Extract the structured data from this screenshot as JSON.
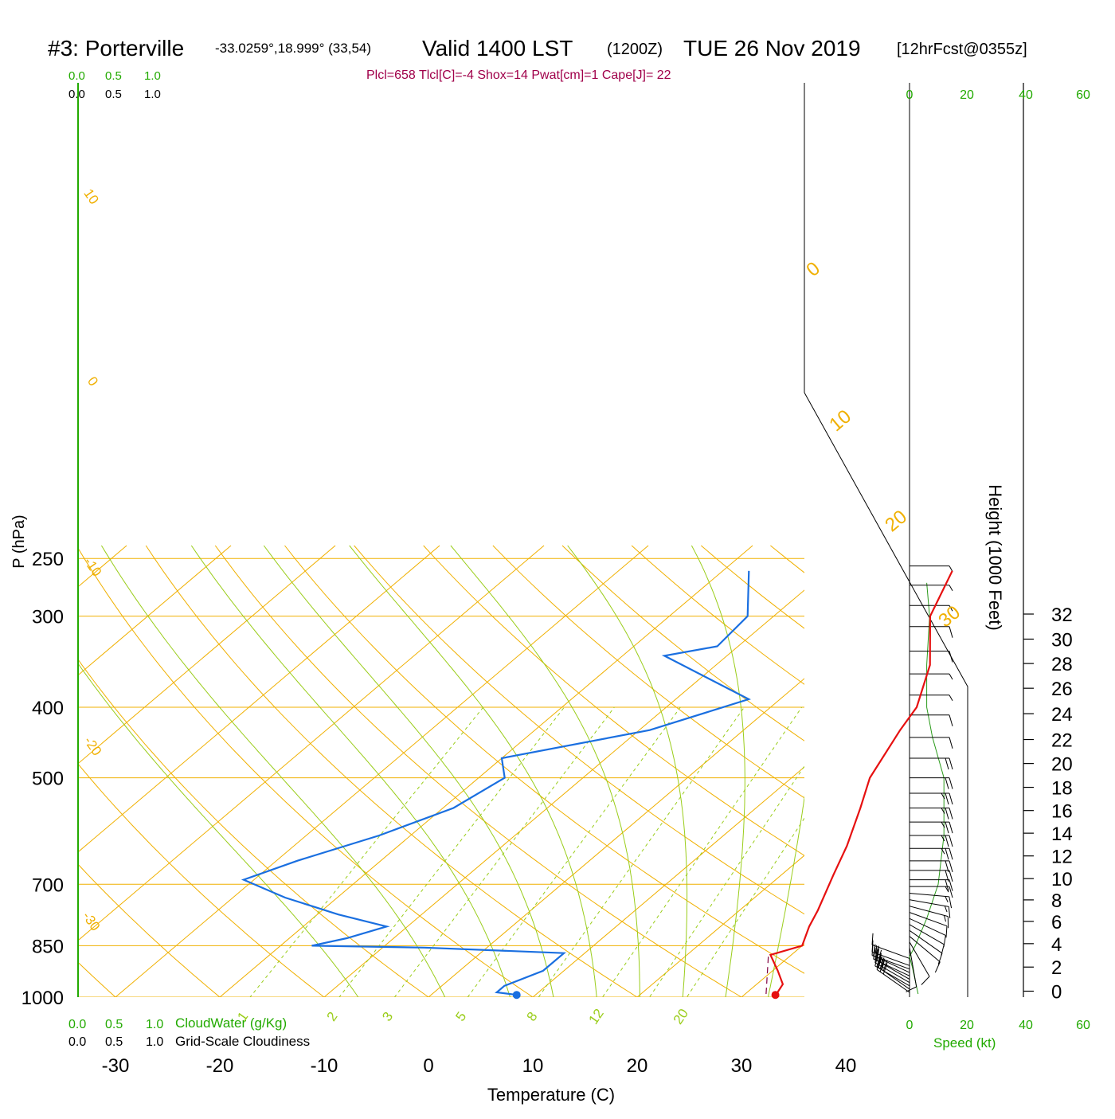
{
  "header": {
    "station": "#3: Porterville",
    "coords": "-33.0259°,18.999° (33,54)",
    "valid": "Valid 1400 LST",
    "utc": "(1200Z)",
    "date": "TUE 26 Nov 2019",
    "fcst": "[12hrFcst@0355z]",
    "indices": "Plcl=658 Tlcl[C]=-4 Shox=14 Pwat[cm]=1 Cape[J]= 22"
  },
  "scales": {
    "cloudwater_ticks": [
      "0.0",
      "0.5",
      "1.0"
    ],
    "cloudiness_ticks": [
      "0.0",
      "0.5",
      "1.0"
    ],
    "cloudwater_label": "CloudWater (g/Kg)",
    "cloudiness_label": "Grid-Scale Cloudiness",
    "speed_ticks": [
      "0",
      "20",
      "40",
      "60"
    ],
    "speed_label": "Speed (kt)"
  },
  "colors": {
    "temperature": "#e61010",
    "dewpoint": "#1a6fe0",
    "isotherm": "#f0b000",
    "dry_adiabat": "#f0b000",
    "moist_adiabat": "#9acd1a",
    "mixing_ratio": "#9acd1a",
    "wind_speed": "#2a9a1a",
    "parcel": "#800040",
    "indices": "#a0004a",
    "green_text": "#22aa00"
  },
  "chart_data": {
    "type": "skew-t",
    "xlabel": "Temperature (C)",
    "ylabel": "P (hPa)",
    "y2label": "Height (1000 Feet)",
    "x_ticks": [
      -30,
      -20,
      -10,
      0,
      10,
      20,
      30,
      40
    ],
    "p_ticks": [
      250,
      300,
      400,
      500,
      700,
      850,
      1000
    ],
    "height_ticks": [
      0,
      2,
      4,
      6,
      8,
      10,
      12,
      14,
      16,
      18,
      20,
      22,
      24,
      26,
      28,
      30,
      32
    ],
    "dry_adiabat_labels": [
      "10",
      "0",
      "-10",
      "-20",
      "-30"
    ],
    "theta_labels": [
      "0",
      "10",
      "20",
      "30"
    ],
    "mixing_ratio_labels": [
      "1",
      "2",
      "3",
      "5",
      "8",
      "12",
      "20"
    ],
    "temperature": [
      [
        2.0,
        260
      ],
      [
        5.0,
        300
      ],
      [
        10.5,
        350
      ],
      [
        14.0,
        400
      ],
      [
        15.0,
        430
      ],
      [
        17.5,
        500
      ],
      [
        20.0,
        550
      ],
      [
        23.0,
        620
      ],
      [
        25.0,
        680
      ],
      [
        27.5,
        760
      ],
      [
        28.5,
        800
      ],
      [
        30.0,
        850
      ],
      [
        28.0,
        875
      ],
      [
        30.5,
        920
      ],
      [
        32.5,
        960
      ],
      [
        33.0,
        990
      ]
    ],
    "dewpoint": [
      [
        -17.5,
        260
      ],
      [
        -12.5,
        300
      ],
      [
        -12.0,
        330
      ],
      [
        -16.0,
        340
      ],
      [
        -3.0,
        390
      ],
      [
        -9.0,
        430
      ],
      [
        -20.0,
        470
      ],
      [
        -17.5,
        500
      ],
      [
        -19.0,
        550
      ],
      [
        -23.0,
        600
      ],
      [
        -28.0,
        650
      ],
      [
        -31.0,
        690
      ],
      [
        -25.0,
        730
      ],
      [
        -18.0,
        770
      ],
      [
        -12.0,
        800
      ],
      [
        -14.5,
        830
      ],
      [
        -17.0,
        850
      ],
      [
        -6.0,
        855
      ],
      [
        8.0,
        870
      ],
      [
        8.0,
        920
      ],
      [
        6.0,
        965
      ],
      [
        6.0,
        985
      ],
      [
        8.0,
        992
      ]
    ],
    "parcel": [
      [
        28.0,
        880
      ],
      [
        32.0,
        990
      ]
    ],
    "surface_points": {
      "temperature": 33.0,
      "dewpoint": 8.2,
      "pressure": 993
    },
    "height_profile_kft": [
      [
        0.0,
        1000
      ],
      [
        1.5,
        945
      ],
      [
        3.5,
        875
      ],
      [
        5.5,
        815
      ],
      [
        7.5,
        760
      ],
      [
        10.0,
        700
      ],
      [
        12.5,
        640
      ],
      [
        15.0,
        585
      ],
      [
        17.5,
        535
      ],
      [
        20.0,
        487
      ],
      [
        22.5,
        443
      ],
      [
        25.0,
        400
      ],
      [
        27.5,
        362
      ],
      [
        30.0,
        329
      ],
      [
        32.5,
        298
      ]
    ],
    "wind_speed_profile": [
      [
        3,
        990
      ],
      [
        1,
        910
      ],
      [
        0,
        880
      ],
      [
        2,
        850
      ],
      [
        6,
        780
      ],
      [
        10,
        700
      ],
      [
        12,
        600
      ],
      [
        12,
        500
      ],
      [
        8,
        440
      ],
      [
        6,
        400
      ],
      [
        6,
        350
      ],
      [
        7,
        300
      ],
      [
        6,
        270
      ]
    ],
    "wind_barbs": [
      {
        "p": 985,
        "dir": 305,
        "spd": 30
      },
      {
        "p": 975,
        "dir": 305,
        "spd": 30
      },
      {
        "p": 965,
        "dir": 300,
        "spd": 30
      },
      {
        "p": 955,
        "dir": 300,
        "spd": 25
      },
      {
        "p": 945,
        "dir": 300,
        "spd": 25
      },
      {
        "p": 935,
        "dir": 295,
        "spd": 25
      },
      {
        "p": 925,
        "dir": 295,
        "spd": 25
      },
      {
        "p": 915,
        "dir": 290,
        "spd": 20
      },
      {
        "p": 905,
        "dir": 290,
        "spd": 15
      },
      {
        "p": 885,
        "dir": 290,
        "spd": 10
      },
      {
        "p": 855,
        "dir": 170,
        "spd": 10
      },
      {
        "p": 840,
        "dir": 150,
        "spd": 10
      },
      {
        "p": 825,
        "dir": 130,
        "spd": 10
      },
      {
        "p": 810,
        "dir": 125,
        "spd": 10
      },
      {
        "p": 795,
        "dir": 120,
        "spd": 10
      },
      {
        "p": 780,
        "dir": 115,
        "spd": 10
      },
      {
        "p": 765,
        "dir": 110,
        "spd": 10
      },
      {
        "p": 750,
        "dir": 105,
        "spd": 15
      },
      {
        "p": 735,
        "dir": 100,
        "spd": 15
      },
      {
        "p": 720,
        "dir": 95,
        "spd": 15
      },
      {
        "p": 705,
        "dir": 90,
        "spd": 15
      },
      {
        "p": 690,
        "dir": 90,
        "spd": 20
      },
      {
        "p": 670,
        "dir": 90,
        "spd": 20
      },
      {
        "p": 650,
        "dir": 90,
        "spd": 20
      },
      {
        "p": 625,
        "dir": 90,
        "spd": 25
      },
      {
        "p": 600,
        "dir": 90,
        "spd": 25
      },
      {
        "p": 575,
        "dir": 90,
        "spd": 25
      },
      {
        "p": 550,
        "dir": 90,
        "spd": 25
      },
      {
        "p": 525,
        "dir": 90,
        "spd": 25
      },
      {
        "p": 500,
        "dir": 90,
        "spd": 20
      },
      {
        "p": 470,
        "dir": 90,
        "spd": 20
      },
      {
        "p": 440,
        "dir": 90,
        "spd": 10
      },
      {
        "p": 410,
        "dir": 90,
        "spd": 10
      },
      {
        "p": 385,
        "dir": 90,
        "spd": 5
      },
      {
        "p": 360,
        "dir": 90,
        "spd": 5
      },
      {
        "p": 335,
        "dir": 90,
        "spd": 10
      },
      {
        "p": 310,
        "dir": 90,
        "spd": 10
      },
      {
        "p": 290,
        "dir": 90,
        "spd": 5
      },
      {
        "p": 272,
        "dir": 90,
        "spd": 5
      },
      {
        "p": 256,
        "dir": 90,
        "spd": 5
      }
    ]
  }
}
